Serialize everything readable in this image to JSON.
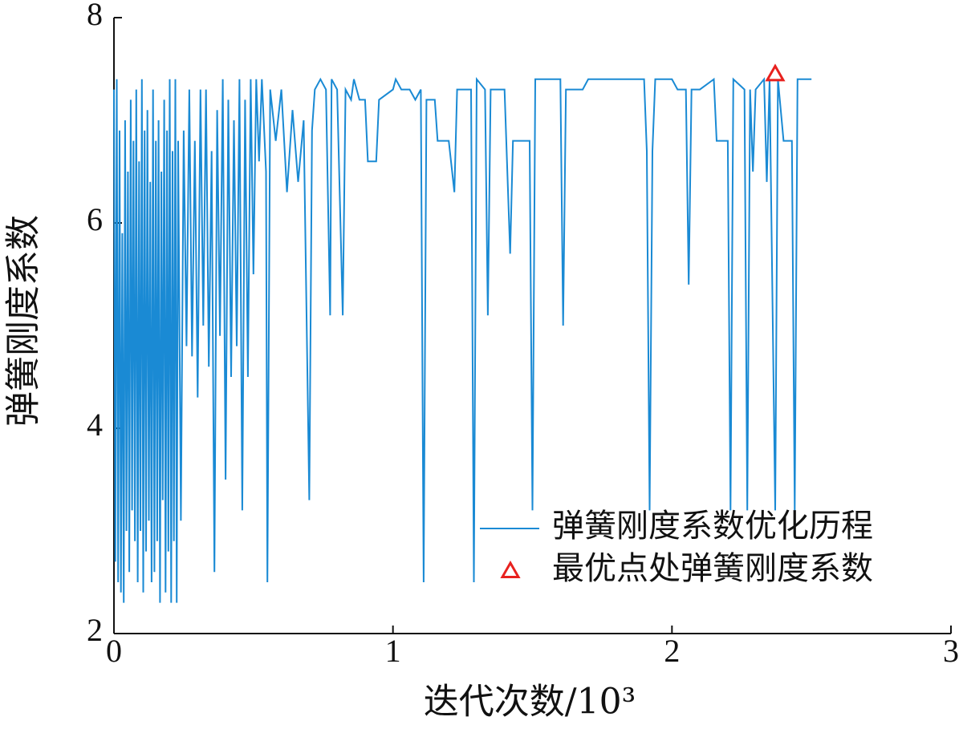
{
  "chart_data": {
    "type": "line",
    "x_label": "迭代次数/10³",
    "y_label": "弹簧刚度系数",
    "xlim": [
      0,
      3
    ],
    "xticks": [
      0,
      1,
      2,
      3
    ],
    "ylim": [
      2,
      8
    ],
    "yticks": [
      2,
      4,
      6,
      8
    ],
    "legend": "lower right",
    "series": [
      {
        "name": "弹簧刚度系数优化历程",
        "color": "#1a8ad4",
        "style": "line",
        "x": [
          0.0,
          0.005,
          0.01,
          0.015,
          0.02,
          0.025,
          0.03,
          0.035,
          0.04,
          0.045,
          0.05,
          0.055,
          0.06,
          0.065,
          0.07,
          0.075,
          0.08,
          0.085,
          0.09,
          0.095,
          0.1,
          0.105,
          0.11,
          0.115,
          0.12,
          0.125,
          0.13,
          0.135,
          0.14,
          0.145,
          0.15,
          0.155,
          0.16,
          0.165,
          0.17,
          0.175,
          0.18,
          0.185,
          0.19,
          0.195,
          0.2,
          0.205,
          0.21,
          0.215,
          0.22,
          0.225,
          0.23,
          0.24,
          0.25,
          0.26,
          0.27,
          0.28,
          0.29,
          0.3,
          0.31,
          0.32,
          0.33,
          0.34,
          0.35,
          0.36,
          0.37,
          0.38,
          0.39,
          0.4,
          0.41,
          0.42,
          0.43,
          0.44,
          0.45,
          0.46,
          0.47,
          0.48,
          0.49,
          0.5,
          0.51,
          0.52,
          0.53,
          0.545,
          0.55,
          0.56,
          0.58,
          0.6,
          0.62,
          0.64,
          0.66,
          0.68,
          0.7,
          0.71,
          0.72,
          0.74,
          0.76,
          0.775,
          0.78,
          0.8,
          0.82,
          0.83,
          0.85,
          0.86,
          0.88,
          0.9,
          0.91,
          0.94,
          0.95,
          1.0,
          1.01,
          1.03,
          1.06,
          1.08,
          1.1,
          1.11,
          1.12,
          1.15,
          1.16,
          1.2,
          1.22,
          1.23,
          1.28,
          1.29,
          1.3,
          1.33,
          1.34,
          1.35,
          1.4,
          1.42,
          1.43,
          1.49,
          1.5,
          1.51,
          1.6,
          1.61,
          1.62,
          1.68,
          1.7,
          1.75,
          1.8,
          1.85,
          1.9,
          1.91,
          1.92,
          1.93,
          1.94,
          2.0,
          2.02,
          2.05,
          2.06,
          2.07,
          2.1,
          2.15,
          2.16,
          2.2,
          2.21,
          2.22,
          2.26,
          2.27,
          2.28,
          2.29,
          2.3,
          2.33,
          2.34,
          2.35,
          2.37,
          2.38,
          2.4,
          2.43,
          2.44,
          2.45,
          2.5
        ],
        "values": [
          7.3,
          2.7,
          7.4,
          2.5,
          6.9,
          2.4,
          5.9,
          2.3,
          7.0,
          3.0,
          6.5,
          2.6,
          7.2,
          3.2,
          6.8,
          2.9,
          7.3,
          2.5,
          6.6,
          3.0,
          7.4,
          2.4,
          6.9,
          2.8,
          7.1,
          3.1,
          6.4,
          2.5,
          7.3,
          2.6,
          6.8,
          2.9,
          7.0,
          2.3,
          6.5,
          3.3,
          7.2,
          2.4,
          6.9,
          2.8,
          7.4,
          2.3,
          6.7,
          2.9,
          7.4,
          2.3,
          6.8,
          3.1,
          6.9,
          4.8,
          7.3,
          4.7,
          6.8,
          4.3,
          7.3,
          5.0,
          7.3,
          4.6,
          6.7,
          2.6,
          7.1,
          4.9,
          7.4,
          3.5,
          7.2,
          4.5,
          7.0,
          4.8,
          7.4,
          3.2,
          7.2,
          4.5,
          7.4,
          5.5,
          7.4,
          6.6,
          7.4,
          6.5,
          2.5,
          7.3,
          6.8,
          7.3,
          6.3,
          7.1,
          6.4,
          7.0,
          3.3,
          6.9,
          7.3,
          7.4,
          7.3,
          5.1,
          7.4,
          7.3,
          5.1,
          7.3,
          7.2,
          7.4,
          7.2,
          7.2,
          6.6,
          6.6,
          7.2,
          7.3,
          7.4,
          7.3,
          7.3,
          7.2,
          7.3,
          2.5,
          7.2,
          7.2,
          6.8,
          6.8,
          6.3,
          7.3,
          7.3,
          2.5,
          7.4,
          7.3,
          5.1,
          7.3,
          7.3,
          5.7,
          6.8,
          6.8,
          3.2,
          7.4,
          7.4,
          5.0,
          7.3,
          7.3,
          7.4,
          7.4,
          7.4,
          7.4,
          7.4,
          6.7,
          3.2,
          6.7,
          7.4,
          7.4,
          7.3,
          7.3,
          5.4,
          7.3,
          7.3,
          7.4,
          6.8,
          6.8,
          3.2,
          7.4,
          7.3,
          3.2,
          7.3,
          6.5,
          7.3,
          7.4,
          6.4,
          7.4,
          3.2,
          7.4,
          6.8,
          6.8,
          3.2,
          7.4,
          7.4
        ]
      },
      {
        "name": "最优点处弹簧刚度系数",
        "color": "#e8211e",
        "style": "triangle",
        "x": [
          2.37
        ],
        "values": [
          7.45
        ]
      }
    ]
  }
}
